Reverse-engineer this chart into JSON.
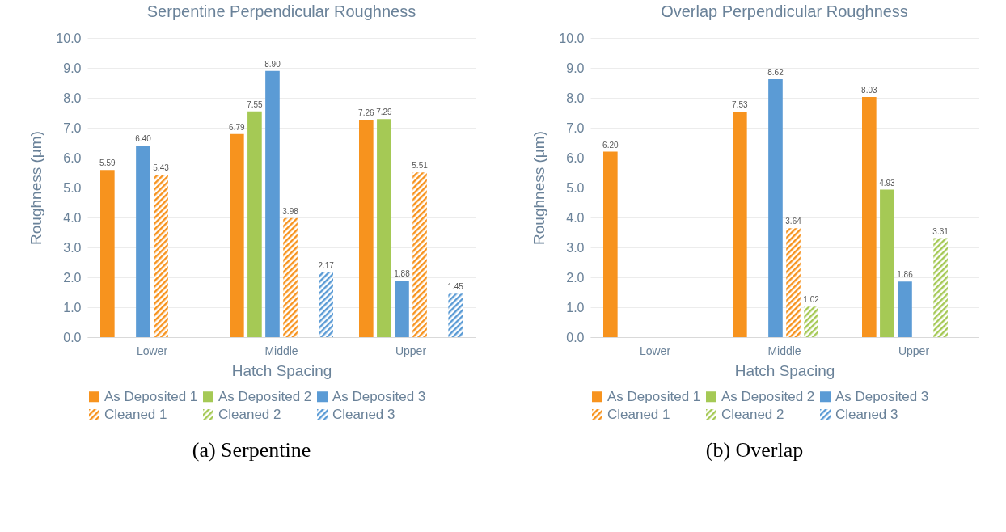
{
  "chart_data": [
    {
      "type": "bar",
      "title": "Serpentine Perpendicular Roughness",
      "xlabel": "Hatch Spacing",
      "ylabel": "Roughness (μm)",
      "categories": [
        "Lower",
        "Middle",
        "Upper"
      ],
      "ylim": [
        0,
        10
      ],
      "yticks": [
        {
          "value": 0,
          "label": "0.0"
        },
        {
          "value": 1,
          "label": "1.0"
        },
        {
          "value": 2,
          "label": "2.0"
        },
        {
          "value": 3,
          "label": "3.0"
        },
        {
          "value": 4,
          "label": "4.0"
        },
        {
          "value": 5,
          "label": "5.0"
        },
        {
          "value": 6,
          "label": "6.0"
        },
        {
          "value": 7,
          "label": "7.0"
        },
        {
          "value": 8,
          "label": "8.0"
        },
        {
          "value": 9,
          "label": "9.0"
        },
        {
          "value": 10,
          "label": "10.0"
        }
      ],
      "grid": "y",
      "legend": "bottom",
      "annotations": [
        "(a) Serpentine"
      ],
      "series": [
        {
          "name": "As Deposited 1",
          "color": "#f7931e",
          "values": [
            5.59,
            6.79,
            7.26
          ],
          "value_labels": [
            "5.59",
            "6.79",
            "7.26"
          ]
        },
        {
          "name": "As Deposited 2",
          "color": "#a5c955",
          "values": [
            null,
            7.55,
            7.29
          ],
          "value_labels": [
            null,
            "7.55",
            "7.29"
          ]
        },
        {
          "name": "As Deposited 3",
          "color": "#5b9bd5",
          "values": [
            6.4,
            8.9,
            1.88
          ],
          "value_labels": [
            "6.40",
            "8.90",
            "1.88"
          ]
        },
        {
          "name": "Cleaned 1",
          "color": "#f7931e",
          "values": [
            5.43,
            3.98,
            5.51
          ],
          "value_labels": [
            "5.43",
            "3.98",
            "5.51"
          ]
        },
        {
          "name": "Cleaned 2",
          "color": "#a5c955",
          "values": [
            null,
            null,
            null
          ],
          "value_labels": [
            null,
            null,
            null
          ]
        },
        {
          "name": "Cleaned 3",
          "color": "#5b9bd5",
          "values": [
            null,
            2.17,
            1.45
          ],
          "value_labels": [
            null,
            "2.17",
            "1.45"
          ]
        }
      ]
    },
    {
      "type": "bar",
      "title": "Overlap Perpendicular Roughness",
      "xlabel": "Hatch Spacing",
      "ylabel": "Roughness (μm)",
      "categories": [
        "Lower",
        "Middle",
        "Upper"
      ],
      "ylim": [
        0,
        10
      ],
      "yticks": [
        {
          "value": 0,
          "label": "0.0"
        },
        {
          "value": 1,
          "label": "1.0"
        },
        {
          "value": 2,
          "label": "2.0"
        },
        {
          "value": 3,
          "label": "3.0"
        },
        {
          "value": 4,
          "label": "4.0"
        },
        {
          "value": 5,
          "label": "5.0"
        },
        {
          "value": 6,
          "label": "6.0"
        },
        {
          "value": 7,
          "label": "7.0"
        },
        {
          "value": 8,
          "label": "8.0"
        },
        {
          "value": 9,
          "label": "9.0"
        },
        {
          "value": 10,
          "label": "10.0"
        }
      ],
      "grid": "y",
      "legend": "bottom",
      "annotations": [
        "(b) Overlap"
      ],
      "series": [
        {
          "name": "As Deposited 1",
          "color": "#f7931e",
          "values": [
            6.2,
            7.53,
            8.03
          ],
          "value_labels": [
            "6.20",
            "7.53",
            "8.03"
          ]
        },
        {
          "name": "As Deposited 2",
          "color": "#a5c955",
          "values": [
            null,
            null,
            4.93
          ],
          "value_labels": [
            null,
            null,
            "4.93"
          ]
        },
        {
          "name": "As Deposited 3",
          "color": "#5b9bd5",
          "values": [
            null,
            8.62,
            1.86
          ],
          "value_labels": [
            null,
            "8.62",
            "1.86"
          ]
        },
        {
          "name": "Cleaned 1",
          "color": "#f7931e",
          "values": [
            null,
            3.64,
            null
          ],
          "value_labels": [
            null,
            "3.64",
            null
          ]
        },
        {
          "name": "Cleaned 2",
          "color": "#a5c955",
          "values": [
            null,
            1.02,
            3.31
          ],
          "value_labels": [
            null,
            "1.02",
            "3.31"
          ]
        },
        {
          "name": "Cleaned 3",
          "color": "#5b9bd5",
          "values": [
            null,
            null,
            null
          ],
          "value_labels": [
            null,
            null,
            null
          ]
        }
      ]
    }
  ]
}
